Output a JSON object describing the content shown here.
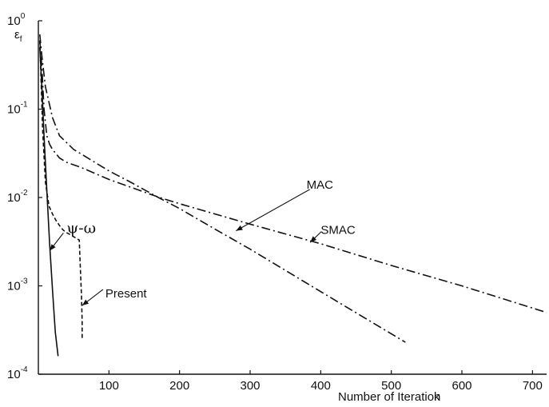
{
  "chart_data": {
    "type": "line",
    "title": "",
    "ylabel": "ε",
    "ylabel_subscript": "f",
    "xlabel": "Number of Iteration",
    "xlabel_symbol": "k",
    "yscale": "log",
    "xlim": [
      0,
      720
    ],
    "ylim": [
      0.0001,
      1
    ],
    "grid": false,
    "legend": "none (curves labelled directly with arrows)",
    "x_ticks": [
      100,
      200,
      300,
      400,
      500,
      600,
      700
    ],
    "x_tick_labels": [
      "100",
      "200",
      "300",
      "400",
      "500",
      "600",
      "700"
    ],
    "y_ticks": [
      {
        "value": 1,
        "base": "10",
        "exp": "0"
      },
      {
        "value": 0.1,
        "base": "10",
        "exp": "-1"
      },
      {
        "value": 0.01,
        "base": "10",
        "exp": "-2"
      },
      {
        "value": 0.001,
        "base": "10",
        "exp": "-3"
      },
      {
        "value": 0.0001,
        "base": "10",
        "exp": "-4"
      }
    ],
    "series": [
      {
        "name": "ψ-ω",
        "style": "solid",
        "x": [
          2,
          5,
          8,
          12,
          16,
          20,
          24,
          28
        ],
        "y": [
          0.5,
          0.18,
          0.05,
          0.012,
          0.003,
          0.0009,
          0.0003,
          0.00016
        ]
      },
      {
        "name": "Present",
        "style": "dashed",
        "x": [
          2,
          4,
          6,
          10,
          15,
          20,
          25,
          30,
          35,
          40,
          45,
          50,
          55,
          58,
          59,
          61,
          62,
          62
        ],
        "y": [
          0.6,
          0.2,
          0.06,
          0.015,
          0.008,
          0.0065,
          0.0055,
          0.0048,
          0.0043,
          0.004,
          0.0038,
          0.0036,
          0.0034,
          0.0033,
          0.002,
          0.0008,
          0.0004,
          0.00025
        ]
      },
      {
        "name": "MAC",
        "style": "dash-dot",
        "x": [
          2,
          5,
          10,
          20,
          30,
          50,
          80,
          100,
          130,
          170,
          200,
          250,
          300,
          400,
          520
        ],
        "y": [
          0.7,
          0.4,
          0.18,
          0.08,
          0.05,
          0.035,
          0.025,
          0.02,
          0.015,
          0.01,
          0.0075,
          0.0044,
          0.0026,
          0.00086,
          0.00023
        ]
      },
      {
        "name": "SMAC",
        "style": "dash-dot",
        "x": [
          2,
          5,
          8,
          12,
          16,
          20,
          30,
          40,
          60,
          100,
          170,
          200,
          300,
          400,
          500,
          600,
          720
        ],
        "y": [
          0.6,
          0.3,
          0.1,
          0.05,
          0.04,
          0.035,
          0.028,
          0.025,
          0.022,
          0.016,
          0.0101,
          0.0085,
          0.005,
          0.003,
          0.0017,
          0.001,
          0.0005
        ]
      }
    ],
    "annotations": [
      {
        "text": "MAC",
        "series": "MAC",
        "text_at": [
          380,
          0.014
        ],
        "arrow_to": [
          280,
          0.0042
        ]
      },
      {
        "text": "SMAC",
        "series": "SMAC",
        "text_at": [
          400,
          0.0043
        ],
        "arrow_to": [
          385,
          0.0031
        ]
      },
      {
        "text": "ψ-ω",
        "series": "ψ-ω",
        "text_at": [
          40,
          0.0044
        ],
        "arrow_to": [
          16,
          0.0025
        ]
      },
      {
        "text": "Present",
        "series": "Present",
        "text_at": [
          95,
          0.00082
        ],
        "arrow_to": [
          62,
          0.0006
        ]
      }
    ]
  }
}
